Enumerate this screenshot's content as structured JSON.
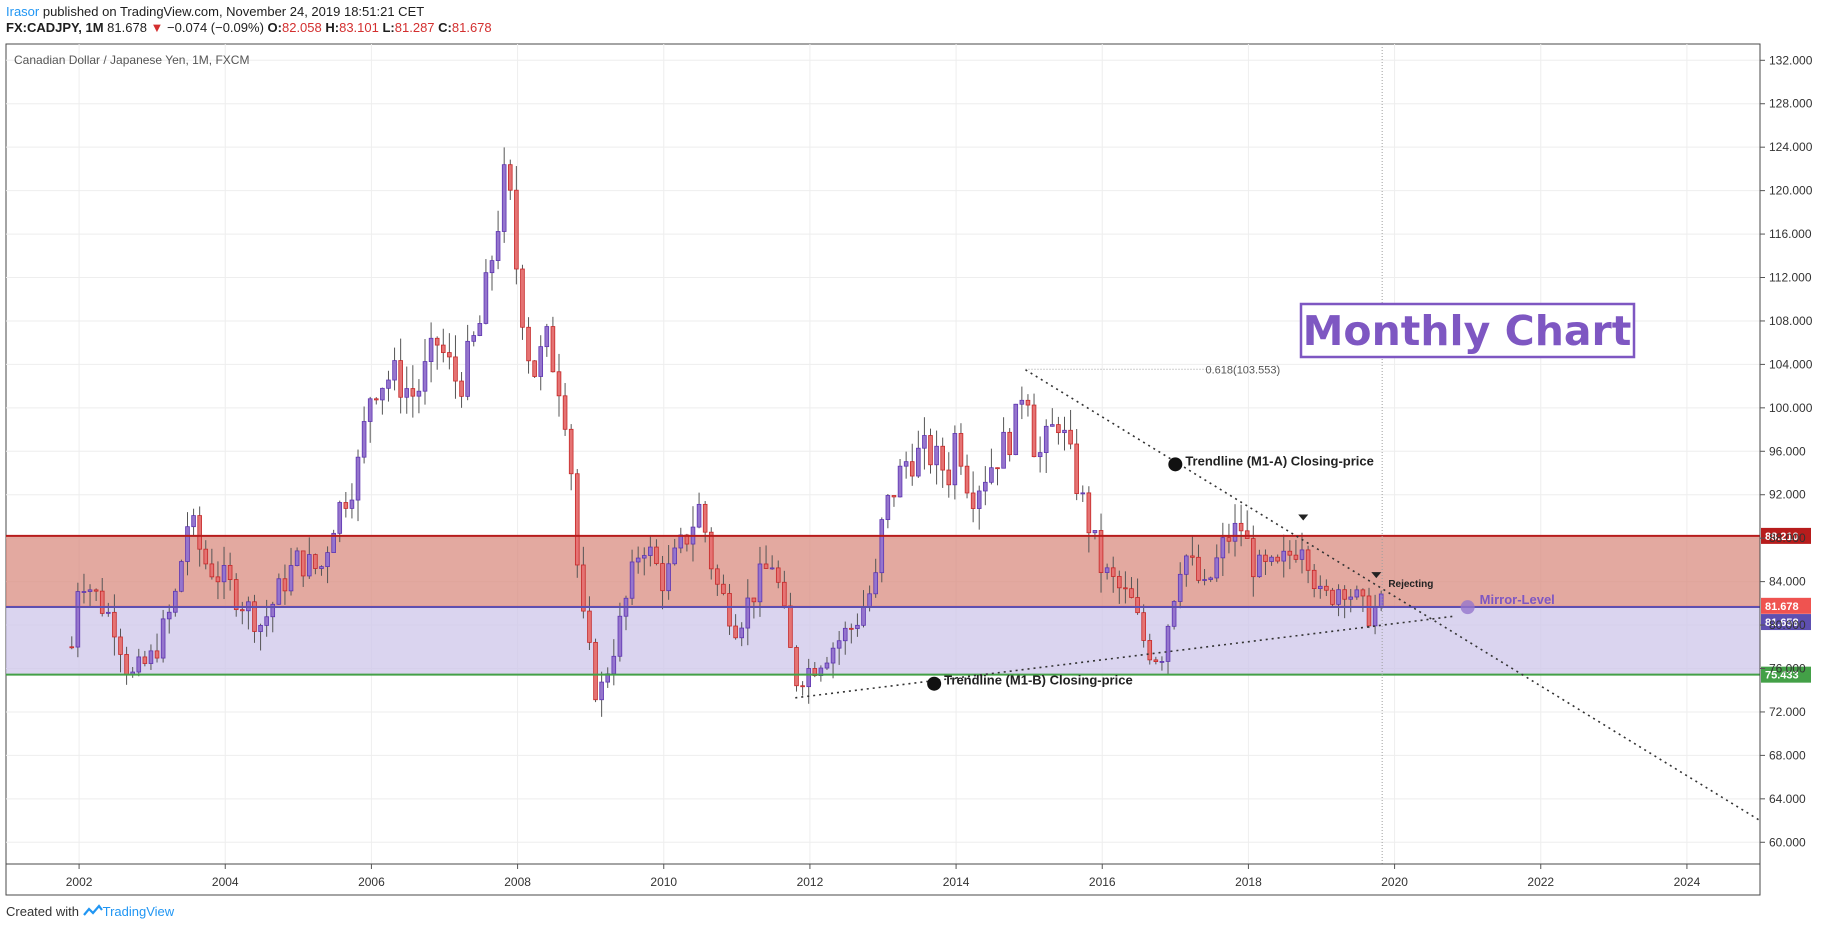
{
  "header": {
    "user": "Irasor",
    "published": " published on TradingView.com, November 24, 2019 18:51:21 CET",
    "symbol": "FX:CADJPY, 1M",
    "last": "81.678",
    "arrow": "▼",
    "change": "−0.074 (−0.09%)",
    "o_label": "O:",
    "o_value": "82.058",
    "h_label": "H:",
    "h_value": "83.101",
    "l_label": "L:",
    "l_value": "81.287",
    "c_label": "C:",
    "c_value": "81.678"
  },
  "footer": {
    "created": "Created with",
    "brand": "TradingView"
  },
  "chart_data": {
    "type": "candlestick",
    "title": "Canadian Dollar / Japanese Yen, 1M, FXCM",
    "x_range": [
      2001.0,
      2025.0
    ],
    "ylim": [
      58.0,
      133.5
    ],
    "x_ticks": [
      "2002",
      "2004",
      "2006",
      "2008",
      "2010",
      "2012",
      "2014",
      "2016",
      "2018",
      "2020",
      "2022",
      "2024"
    ],
    "x_tick_values": [
      2002,
      2004,
      2006,
      2008,
      2010,
      2012,
      2014,
      2016,
      2018,
      2020,
      2022,
      2024
    ],
    "y_ticks": [
      "60.000",
      "64.000",
      "68.000",
      "72.000",
      "76.000",
      "80.000",
      "84.000",
      "88.000",
      "92.000",
      "96.000",
      "100.000",
      "104.000",
      "108.000",
      "112.000",
      "116.000",
      "120.000",
      "124.000",
      "128.000",
      "132.000"
    ],
    "y_tick_values": [
      60,
      64,
      68,
      72,
      76,
      80,
      84,
      88,
      92,
      96,
      100,
      104,
      108,
      112,
      116,
      120,
      124,
      128,
      132
    ],
    "zones": [
      {
        "name": "upper-zone",
        "from": 81.678,
        "to": 88.21,
        "color": "#d98c80"
      },
      {
        "name": "lower-zone",
        "from": 75.433,
        "to": 81.678,
        "color": "#cdc6ea"
      }
    ],
    "levels": [
      {
        "name": "level-88210",
        "value": 88.21,
        "label": "88.210",
        "color": "#b71c1c"
      },
      {
        "name": "level-81678",
        "value": 81.678,
        "label": "81.678",
        "color": "#ef5350"
      },
      {
        "name": "level-81658",
        "value": 81.658,
        "label": "81.658",
        "color": "#5e4fb0"
      },
      {
        "name": "level-75433",
        "value": 75.433,
        "label": "75.433",
        "color": "#43a047"
      }
    ],
    "trendlines": [
      {
        "name": "trendline-m1-a",
        "from": [
          2014.95,
          103.5
        ],
        "to": [
          2025.0,
          62.0
        ]
      },
      {
        "name": "trendline-m1-b",
        "from": [
          2011.8,
          73.3
        ],
        "to": [
          2020.8,
          80.8
        ]
      }
    ],
    "fib": {
      "label": "0.618(103.553)",
      "x_from": 2014.95,
      "x_to": 2017.5,
      "y": 103.553
    },
    "vline_x": 2019.83,
    "annotations": [
      {
        "name": "trendline-m1-a-label",
        "text": "Trendline (M1-A) Closing-price",
        "x": 2017.0,
        "y": 94.8,
        "dot": true
      },
      {
        "name": "trendline-m1-b-label",
        "text": "Trendline (M1-B) Closing-price",
        "x": 2013.7,
        "y": 74.6,
        "dot": true
      },
      {
        "name": "rejecting-label",
        "text": "Rejecting",
        "x": 2019.75,
        "y": 83.6,
        "dot": false
      },
      {
        "name": "mirror-level-label",
        "text": "Mirror-Level",
        "x": 2021.0,
        "y": 81.65,
        "dot": true
      }
    ],
    "markers": [
      {
        "name": "top-marker-2018",
        "x": 2018.75,
        "y": 89.9
      },
      {
        "name": "top-marker-2019",
        "x": 2019.75,
        "y": 84.6
      }
    ],
    "badge": {
      "text": "Monthly Chart"
    },
    "anchors": [
      [
        2001.9,
        78
      ],
      [
        2002.0,
        85
      ],
      [
        2002.5,
        80
      ],
      [
        2002.7,
        75
      ],
      [
        2003.0,
        77
      ],
      [
        2003.3,
        82
      ],
      [
        2003.5,
        90
      ],
      [
        2003.7,
        86
      ],
      [
        2004.0,
        84
      ],
      [
        2004.5,
        80
      ],
      [
        2004.8,
        84
      ],
      [
        2005.0,
        86
      ],
      [
        2005.3,
        85
      ],
      [
        2005.5,
        90
      ],
      [
        2005.8,
        94
      ],
      [
        2006.0,
        102
      ],
      [
        2006.3,
        103
      ],
      [
        2006.6,
        101
      ],
      [
        2006.9,
        106
      ],
      [
        2007.2,
        102
      ],
      [
        2007.5,
        108
      ],
      [
        2007.7,
        116
      ],
      [
        2007.85,
        122
      ],
      [
        2008.0,
        112
      ],
      [
        2008.2,
        103
      ],
      [
        2008.4,
        106
      ],
      [
        2008.55,
        103
      ],
      [
        2008.7,
        98
      ],
      [
        2008.85,
        82
      ],
      [
        2009.1,
        73
      ],
      [
        2009.4,
        80
      ],
      [
        2009.7,
        88
      ],
      [
        2010.0,
        84
      ],
      [
        2010.3,
        88
      ],
      [
        2010.5,
        91
      ],
      [
        2010.7,
        84
      ],
      [
        2011.0,
        80
      ],
      [
        2011.3,
        84
      ],
      [
        2011.5,
        86
      ],
      [
        2011.8,
        75
      ],
      [
        2012.0,
        76
      ],
      [
        2012.3,
        78
      ],
      [
        2012.6,
        80
      ],
      [
        2012.9,
        84
      ],
      [
        2013.0,
        90
      ],
      [
        2013.3,
        95
      ],
      [
        2013.6,
        96
      ],
      [
        2013.9,
        94
      ],
      [
        2014.0,
        98
      ],
      [
        2014.2,
        92
      ],
      [
        2014.5,
        95
      ],
      [
        2014.8,
        98
      ],
      [
        2014.95,
        103.5
      ],
      [
        2015.1,
        95
      ],
      [
        2015.4,
        99
      ],
      [
        2015.7,
        92
      ],
      [
        2016.0,
        85
      ],
      [
        2016.4,
        82
      ],
      [
        2016.6,
        78
      ],
      [
        2016.8,
        77
      ],
      [
        2017.1,
        87
      ],
      [
        2017.4,
        83
      ],
      [
        2017.7,
        88
      ],
      [
        2017.9,
        89
      ],
      [
        2018.1,
        85
      ],
      [
        2018.4,
        85
      ],
      [
        2018.75,
        88.2
      ],
      [
        2019.0,
        82
      ],
      [
        2019.3,
        84
      ],
      [
        2019.6,
        81
      ],
      [
        2019.83,
        81.7
      ]
    ]
  }
}
